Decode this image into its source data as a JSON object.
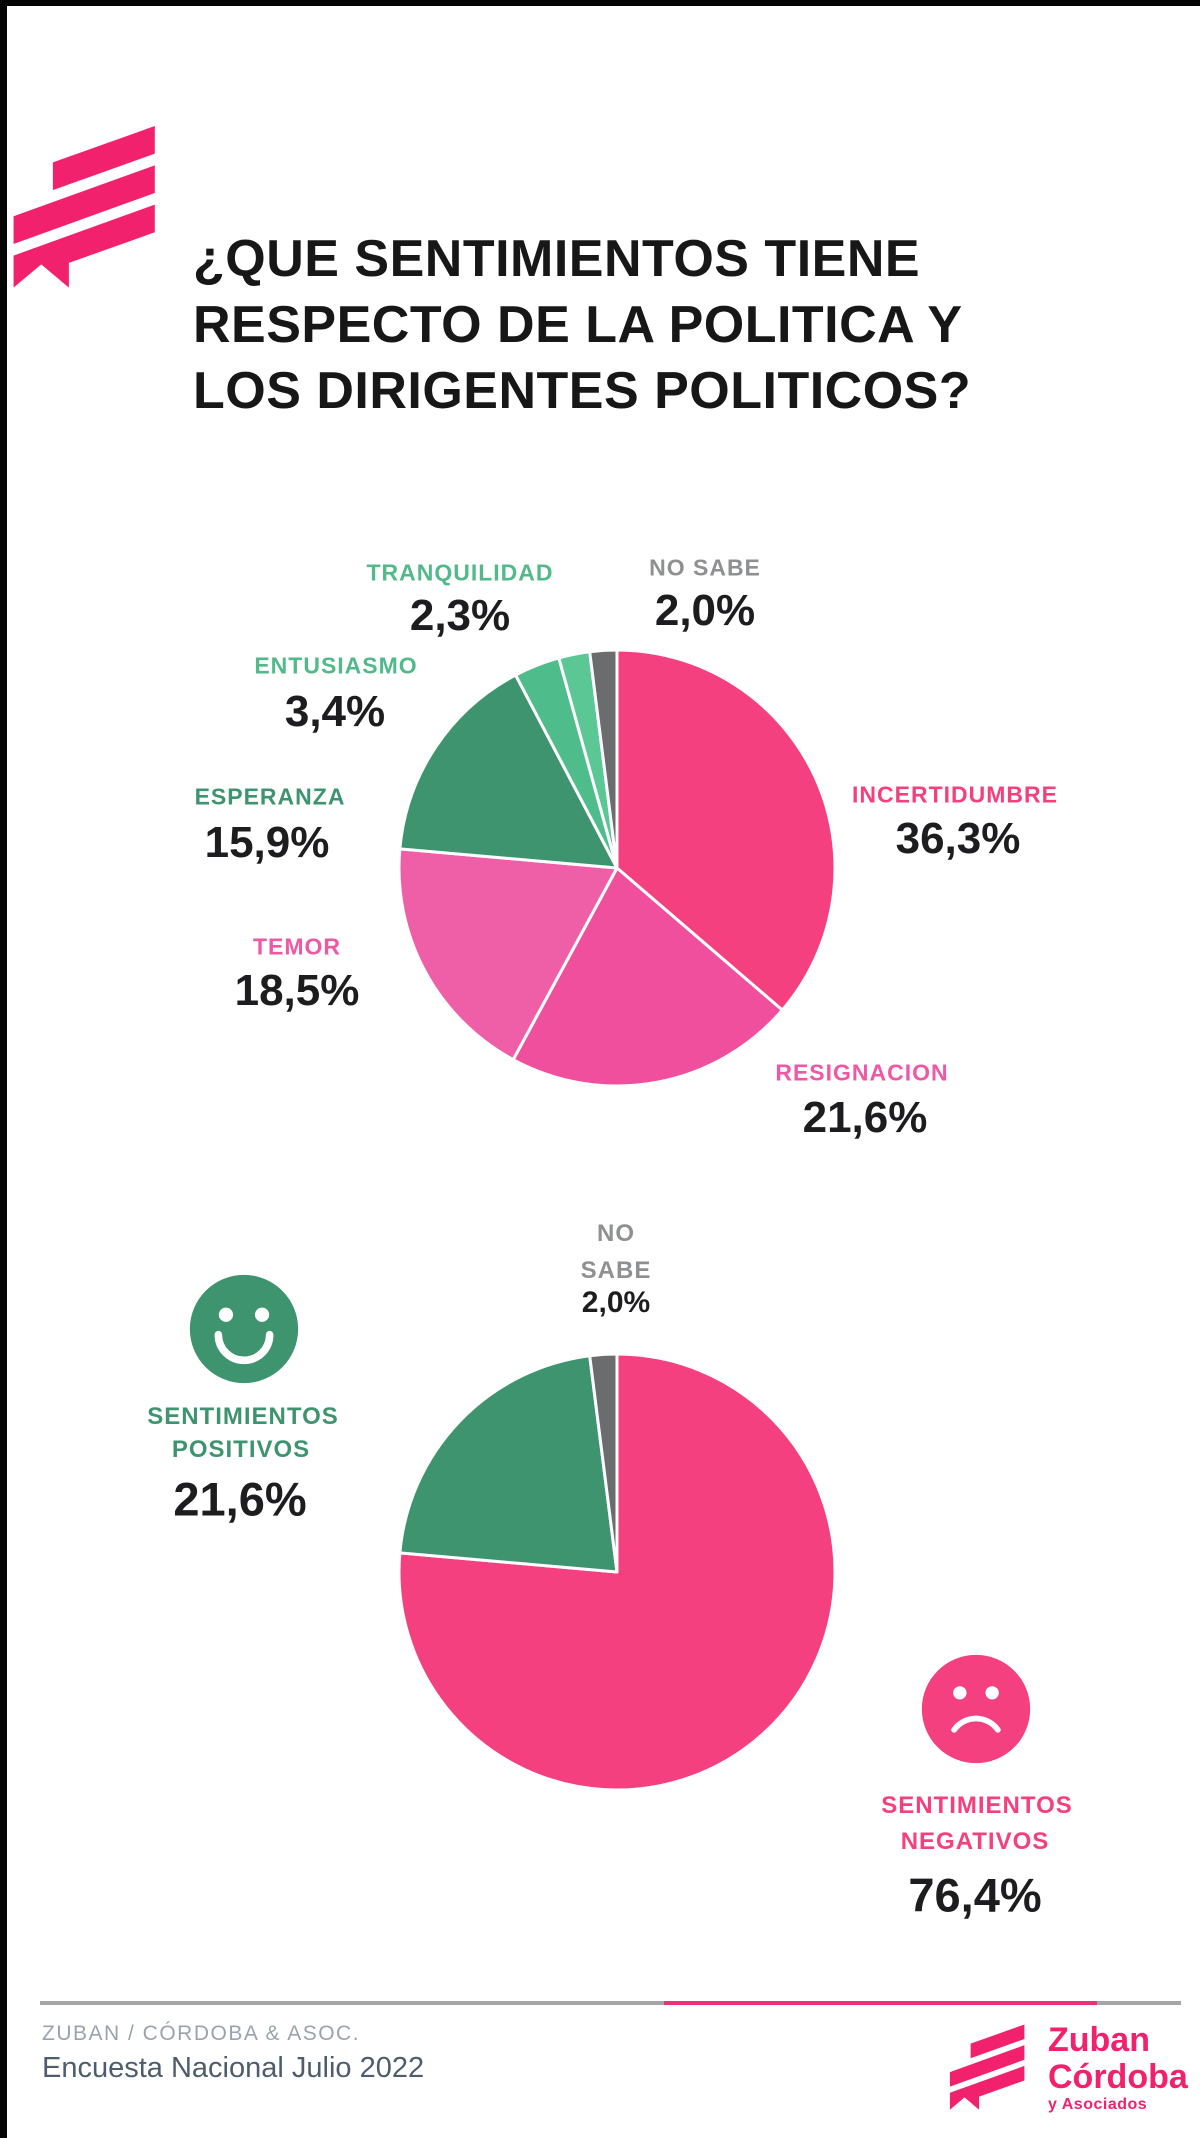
{
  "header": {
    "title_lines": [
      "¿QUE SENTIMIENTOS TIENE",
      "RESPECTO DE LA POLITICA Y",
      "LOS DIRIGENTES POLITICOS?"
    ]
  },
  "chart_data": [
    {
      "type": "pie",
      "title": "Sentimientos respecto de la politica y los dirigentes politicos (detalle)",
      "unit": "percent",
      "labels_position": "around",
      "start_angle": "12-oclock-clockwise",
      "slices": [
        {
          "label": "INCERTIDUMBRE",
          "value": 36.3,
          "display": "36,3%",
          "color": "#f4407e",
          "label_color": "#f4407e"
        },
        {
          "label": "RESIGNACION",
          "value": 21.6,
          "display": "21,6%",
          "color": "#ef4f9c",
          "label_color": "#ee58a4"
        },
        {
          "label": "TEMOR",
          "value": 18.5,
          "display": "18,5%",
          "color": "#ee5fa7",
          "label_color": "#ee58a4"
        },
        {
          "label": "ESPERANZA",
          "value": 15.9,
          "display": "15,9%",
          "color": "#3f9470",
          "label_color": "#3f9470"
        },
        {
          "label": "ENTUSIASMO",
          "value": 3.4,
          "display": "3,4%",
          "color": "#4fbc8c",
          "label_color": "#52b98a"
        },
        {
          "label": "TRANQUILIDAD",
          "value": 2.3,
          "display": "2,3%",
          "color": "#5ac795",
          "label_color": "#52b98a"
        },
        {
          "label": "NO SABE",
          "value": 2.0,
          "display": "2,0%",
          "color": "#6a6c6e",
          "label_color": "#8e9092"
        }
      ]
    },
    {
      "type": "pie",
      "title": "Sentimientos agrupados (positivos vs negativos)",
      "unit": "percent",
      "labels_position": "around",
      "start_angle": "12-oclock-clockwise",
      "slices": [
        {
          "label": "SENTIMIENTOS NEGATIVOS",
          "label_lines": [
            "SENTIMIENTOS",
            "NEGATIVOS"
          ],
          "value": 76.4,
          "display": "76,4%",
          "color": "#f4407e",
          "label_color": "#f4407e"
        },
        {
          "label": "SENTIMIENTOS POSITIVOS",
          "label_lines": [
            "SENTIMIENTOS",
            "POSITIVOS"
          ],
          "value": 21.6,
          "display": "21,6%",
          "color": "#3f9470",
          "label_color": "#3f9470"
        },
        {
          "label": "NO SABE",
          "label_lines": [
            "NO",
            "SABE"
          ],
          "value": 2.0,
          "display": "2,0%",
          "color": "#6a6c6e",
          "label_color": "#8e9092"
        }
      ]
    }
  ],
  "icons": {
    "positive": "smiley-face-icon",
    "negative": "sad-face-icon",
    "brand_mark": "diagonal-stripes-logo-icon"
  },
  "footer": {
    "source_line": "ZUBAN / CÓRDOBA & ASOC.",
    "subtitle": "Encuesta Nacional Julio 2022",
    "brand": {
      "line1": "Zuban",
      "line2": "Córdoba",
      "line3": "y Asociados"
    }
  },
  "brand": {
    "logo_pink": "#f2216e",
    "accent_pink": "#f4407e",
    "dark_green": "#3f9470",
    "mid_green": "#52b98a",
    "gray": "#6a6c6e",
    "text_dark": "#1d1d1f"
  }
}
